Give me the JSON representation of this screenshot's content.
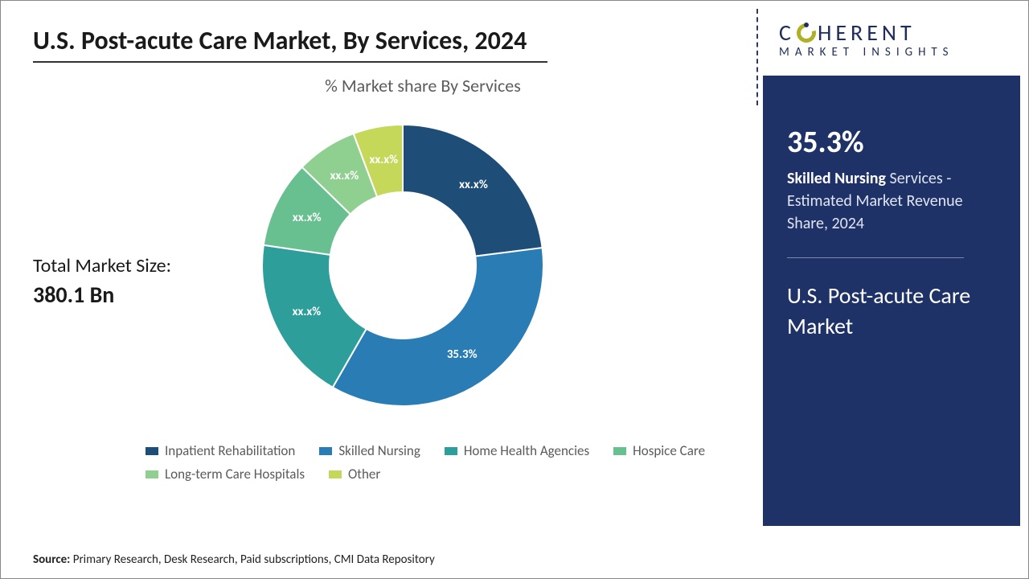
{
  "title": "U.S. Post-acute Care Market, By Services, 2024",
  "chart": {
    "type": "donut",
    "subtitle": "% Market share By Services",
    "inner_radius_pct": 52,
    "background_color": "#ffffff",
    "label_color": "#ffffff",
    "label_fontsize": 15,
    "series": [
      {
        "name": "Inpatient Rehabilitation",
        "value": 23.0,
        "label": "xx.x%",
        "color": "#1e4d78"
      },
      {
        "name": "Skilled Nursing",
        "value": 35.3,
        "label": "35.3%",
        "color": "#2a7cb4"
      },
      {
        "name": "Home Health Agencies",
        "value": 19.0,
        "label": "xx.x%",
        "color": "#2e9e9a"
      },
      {
        "name": "Hospice Care",
        "value": 10.0,
        "label": "xx.x%",
        "color": "#68bf8f"
      },
      {
        "name": "Long-term Care Hospitals",
        "value": 7.0,
        "label": "xx.x%",
        "color": "#8fcf8f"
      },
      {
        "name": "Other",
        "value": 5.7,
        "label": "xx.x%",
        "color": "#c6d85a"
      }
    ]
  },
  "market_size": {
    "label": "Total Market Size:",
    "value": "380.1 Bn"
  },
  "legend_marker": "■",
  "source": {
    "prefix": "Source:",
    "text": "Primary Research, Desk Research, Paid subscriptions, CMI Data Repository"
  },
  "logo": {
    "line1_pre": "C",
    "line1_post": "HERENT",
    "line2": "MARKET INSIGHTS"
  },
  "highlight": {
    "stat": "35.3%",
    "bold_lead": "Skilled Nursing",
    "desc_rest": " Services - Estimated Market Revenue Share, 2024",
    "market_name": "U.S. Post-acute Care Market"
  }
}
